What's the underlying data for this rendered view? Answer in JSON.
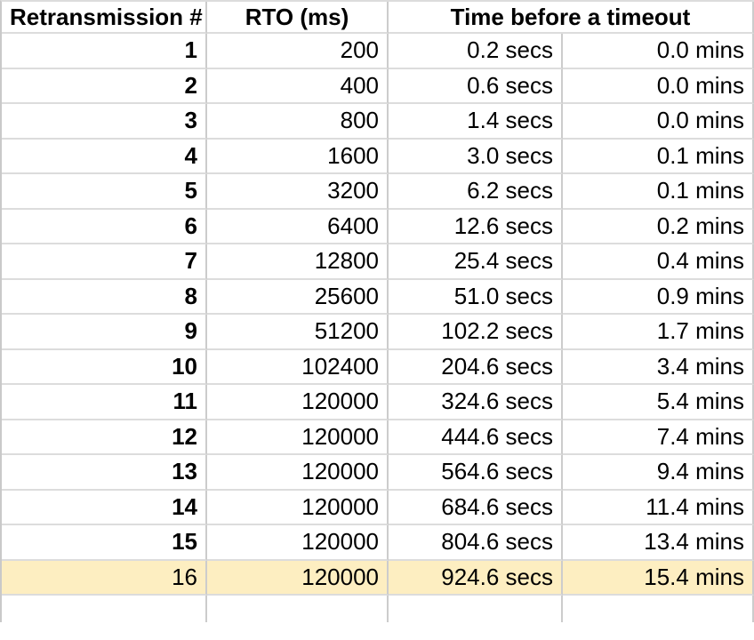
{
  "table": {
    "headers": {
      "retransmission": "Retransmission #",
      "rto": "RTO (ms)",
      "time": "Time before a timeout"
    },
    "rows": [
      {
        "n": "1",
        "rto": "200",
        "secs": "0.2 secs",
        "mins": "0.0 mins"
      },
      {
        "n": "2",
        "rto": "400",
        "secs": "0.6 secs",
        "mins": "0.0 mins"
      },
      {
        "n": "3",
        "rto": "800",
        "secs": "1.4 secs",
        "mins": "0.0 mins"
      },
      {
        "n": "4",
        "rto": "1600",
        "secs": "3.0 secs",
        "mins": "0.1 mins"
      },
      {
        "n": "5",
        "rto": "3200",
        "secs": "6.2 secs",
        "mins": "0.1 mins"
      },
      {
        "n": "6",
        "rto": "6400",
        "secs": "12.6 secs",
        "mins": "0.2 mins"
      },
      {
        "n": "7",
        "rto": "12800",
        "secs": "25.4 secs",
        "mins": "0.4 mins"
      },
      {
        "n": "8",
        "rto": "25600",
        "secs": "51.0 secs",
        "mins": "0.9 mins"
      },
      {
        "n": "9",
        "rto": "51200",
        "secs": "102.2 secs",
        "mins": "1.7 mins"
      },
      {
        "n": "10",
        "rto": "102400",
        "secs": "204.6 secs",
        "mins": "3.4 mins"
      },
      {
        "n": "11",
        "rto": "120000",
        "secs": "324.6 secs",
        "mins": "5.4 mins"
      },
      {
        "n": "12",
        "rto": "120000",
        "secs": "444.6 secs",
        "mins": "7.4 mins"
      },
      {
        "n": "13",
        "rto": "120000",
        "secs": "564.6 secs",
        "mins": "9.4 mins"
      },
      {
        "n": "14",
        "rto": "120000",
        "secs": "684.6 secs",
        "mins": "11.4 mins"
      },
      {
        "n": "15",
        "rto": "120000",
        "secs": "804.6 secs",
        "mins": "13.4 mins"
      },
      {
        "n": "16",
        "rto": "120000",
        "secs": "924.6 secs",
        "mins": "15.4 mins"
      }
    ],
    "highlighted_row_number": "16"
  },
  "colors": {
    "highlight": "#fdeec1",
    "gridline_horizontal": "#dcdcdc",
    "gridline_vertical": "#cccccc"
  }
}
